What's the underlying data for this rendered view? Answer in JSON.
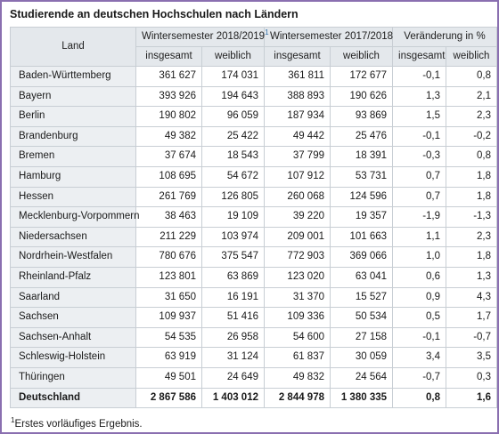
{
  "title": "Studierende an deutschen Hochschulen nach Ländern",
  "header": {
    "land": "Land",
    "ws2018": "Wintersemester 2018/2019",
    "ws2018_note": "1",
    "ws2017": "Wintersemester 2017/2018",
    "change": "Veränderung in %",
    "sub": [
      "insgesamt",
      "weiblich",
      "insgesamt",
      "weiblich",
      "insgesamt",
      "weiblich"
    ]
  },
  "rows": [
    [
      "Baden-Württemberg",
      "361 627",
      "174 031",
      "361 811",
      "172 677",
      "-0,1",
      "0,8"
    ],
    [
      "Bayern",
      "393 926",
      "194 643",
      "388 893",
      "190 626",
      "1,3",
      "2,1"
    ],
    [
      "Berlin",
      "190 802",
      "96 059",
      "187 934",
      "93 869",
      "1,5",
      "2,3"
    ],
    [
      "Brandenburg",
      "49 382",
      "25 422",
      "49 442",
      "25 476",
      "-0,1",
      "-0,2"
    ],
    [
      "Bremen",
      "37 674",
      "18 543",
      "37 799",
      "18 391",
      "-0,3",
      "0,8"
    ],
    [
      "Hamburg",
      "108 695",
      "54 672",
      "107 912",
      "53 731",
      "0,7",
      "1,8"
    ],
    [
      "Hessen",
      "261 769",
      "126 805",
      "260 068",
      "124 596",
      "0,7",
      "1,8"
    ],
    [
      "Mecklenburg-Vorpommern",
      "38 463",
      "19 109",
      "39 220",
      "19 357",
      "-1,9",
      "-1,3"
    ],
    [
      "Niedersachsen",
      "211 229",
      "103 974",
      "209 001",
      "101 663",
      "1,1",
      "2,3"
    ],
    [
      "Nordrhein-Westfalen",
      "780 676",
      "375 547",
      "772 903",
      "369 066",
      "1,0",
      "1,8"
    ],
    [
      "Rheinland-Pfalz",
      "123 801",
      "63 869",
      "123 020",
      "63 041",
      "0,6",
      "1,3"
    ],
    [
      "Saarland",
      "31 650",
      "16 191",
      "31 370",
      "15 527",
      "0,9",
      "4,3"
    ],
    [
      "Sachsen",
      "109 937",
      "51 416",
      "109 336",
      "50 534",
      "0,5",
      "1,7"
    ],
    [
      "Sachsen-Anhalt",
      "54 535",
      "26 958",
      "54 600",
      "27 158",
      "-0,1",
      "-0,7"
    ],
    [
      "Schleswig-Holstein",
      "63 919",
      "31 124",
      "61 837",
      "30 059",
      "3,4",
      "3,5"
    ],
    [
      "Thüringen",
      "49 501",
      "24 649",
      "49 832",
      "24 564",
      "-0,7",
      "0,3"
    ]
  ],
  "total": [
    "Deutschland",
    "2 867 586",
    "1 403 012",
    "2 844 978",
    "1 380 335",
    "0,8",
    "1,6"
  ],
  "footnote": {
    "mark": "1",
    "text": "Erstes vorläufiges Ergebnis."
  }
}
